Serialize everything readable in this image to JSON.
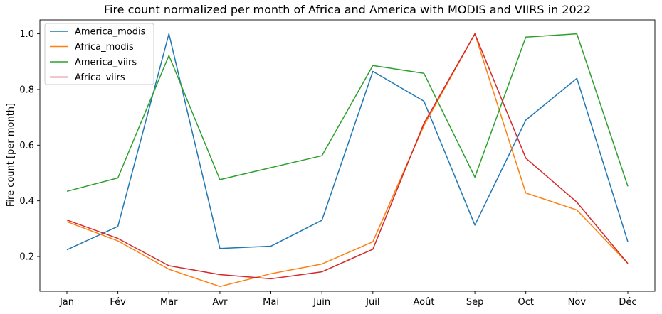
{
  "chart_data": {
    "type": "line",
    "title": "Fire count normalized per month of Africa and America with MODIS and VIIRS in 2022",
    "xlabel": "",
    "ylabel": "Fire count [per month]",
    "categories": [
      "Jan",
      "Fév",
      "Mar",
      "Avr",
      "Mai",
      "Juin",
      "Juil",
      "Août",
      "Sep",
      "Oct",
      "Nov",
      "Déc"
    ],
    "ylim": [
      0.075,
      1.05
    ],
    "yticks": [
      0.2,
      0.4,
      0.6,
      0.8,
      1.0
    ],
    "ytick_labels": [
      "0.2",
      "0.4",
      "0.6",
      "0.8",
      "1.0"
    ],
    "grid": false,
    "legend_position": "top-left",
    "series": [
      {
        "name": "America_modis",
        "color": "#1f77b4",
        "values": [
          0.224,
          0.308,
          1.0,
          0.229,
          0.237,
          0.33,
          0.865,
          0.758,
          0.313,
          0.69,
          0.84,
          0.253
        ]
      },
      {
        "name": "Africa_modis",
        "color": "#ff7f0e",
        "values": [
          0.325,
          0.256,
          0.154,
          0.092,
          0.138,
          0.173,
          0.253,
          0.67,
          1.0,
          0.428,
          0.367,
          0.175
        ]
      },
      {
        "name": "America_viirs",
        "color": "#2ca02c",
        "values": [
          0.434,
          0.482,
          0.922,
          0.476,
          0.519,
          0.562,
          0.886,
          0.858,
          0.485,
          0.988,
          1.0,
          0.452
        ]
      },
      {
        "name": "Africa_viirs",
        "color": "#d62728",
        "values": [
          0.331,
          0.265,
          0.167,
          0.135,
          0.12,
          0.145,
          0.226,
          0.678,
          1.0,
          0.553,
          0.395,
          0.175
        ]
      }
    ]
  }
}
